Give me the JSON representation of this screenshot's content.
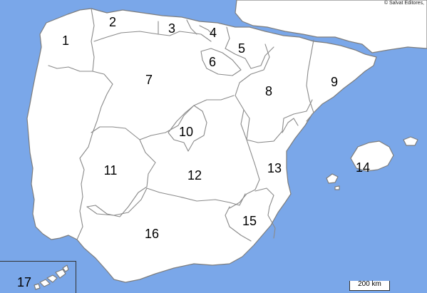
{
  "copyright": "© Salvat Editores,",
  "scale_label": "200 km",
  "colors": {
    "sea": "#7aa7e9",
    "land": "#ffffff",
    "border": "#8a8a8a"
  },
  "regions": [
    {
      "id": "r1",
      "label": "1"
    },
    {
      "id": "r2",
      "label": "2"
    },
    {
      "id": "r3",
      "label": "3"
    },
    {
      "id": "r4",
      "label": "4"
    },
    {
      "id": "r5",
      "label": "5"
    },
    {
      "id": "r6",
      "label": "6"
    },
    {
      "id": "r7",
      "label": "7"
    },
    {
      "id": "r8",
      "label": "8"
    },
    {
      "id": "r9",
      "label": "9"
    },
    {
      "id": "r10",
      "label": "10"
    },
    {
      "id": "r11",
      "label": "11"
    },
    {
      "id": "r12",
      "label": "12"
    },
    {
      "id": "r13",
      "label": "13"
    },
    {
      "id": "r14",
      "label": "14"
    },
    {
      "id": "r15",
      "label": "15"
    },
    {
      "id": "r16",
      "label": "16"
    },
    {
      "id": "r17",
      "label": "17"
    }
  ]
}
